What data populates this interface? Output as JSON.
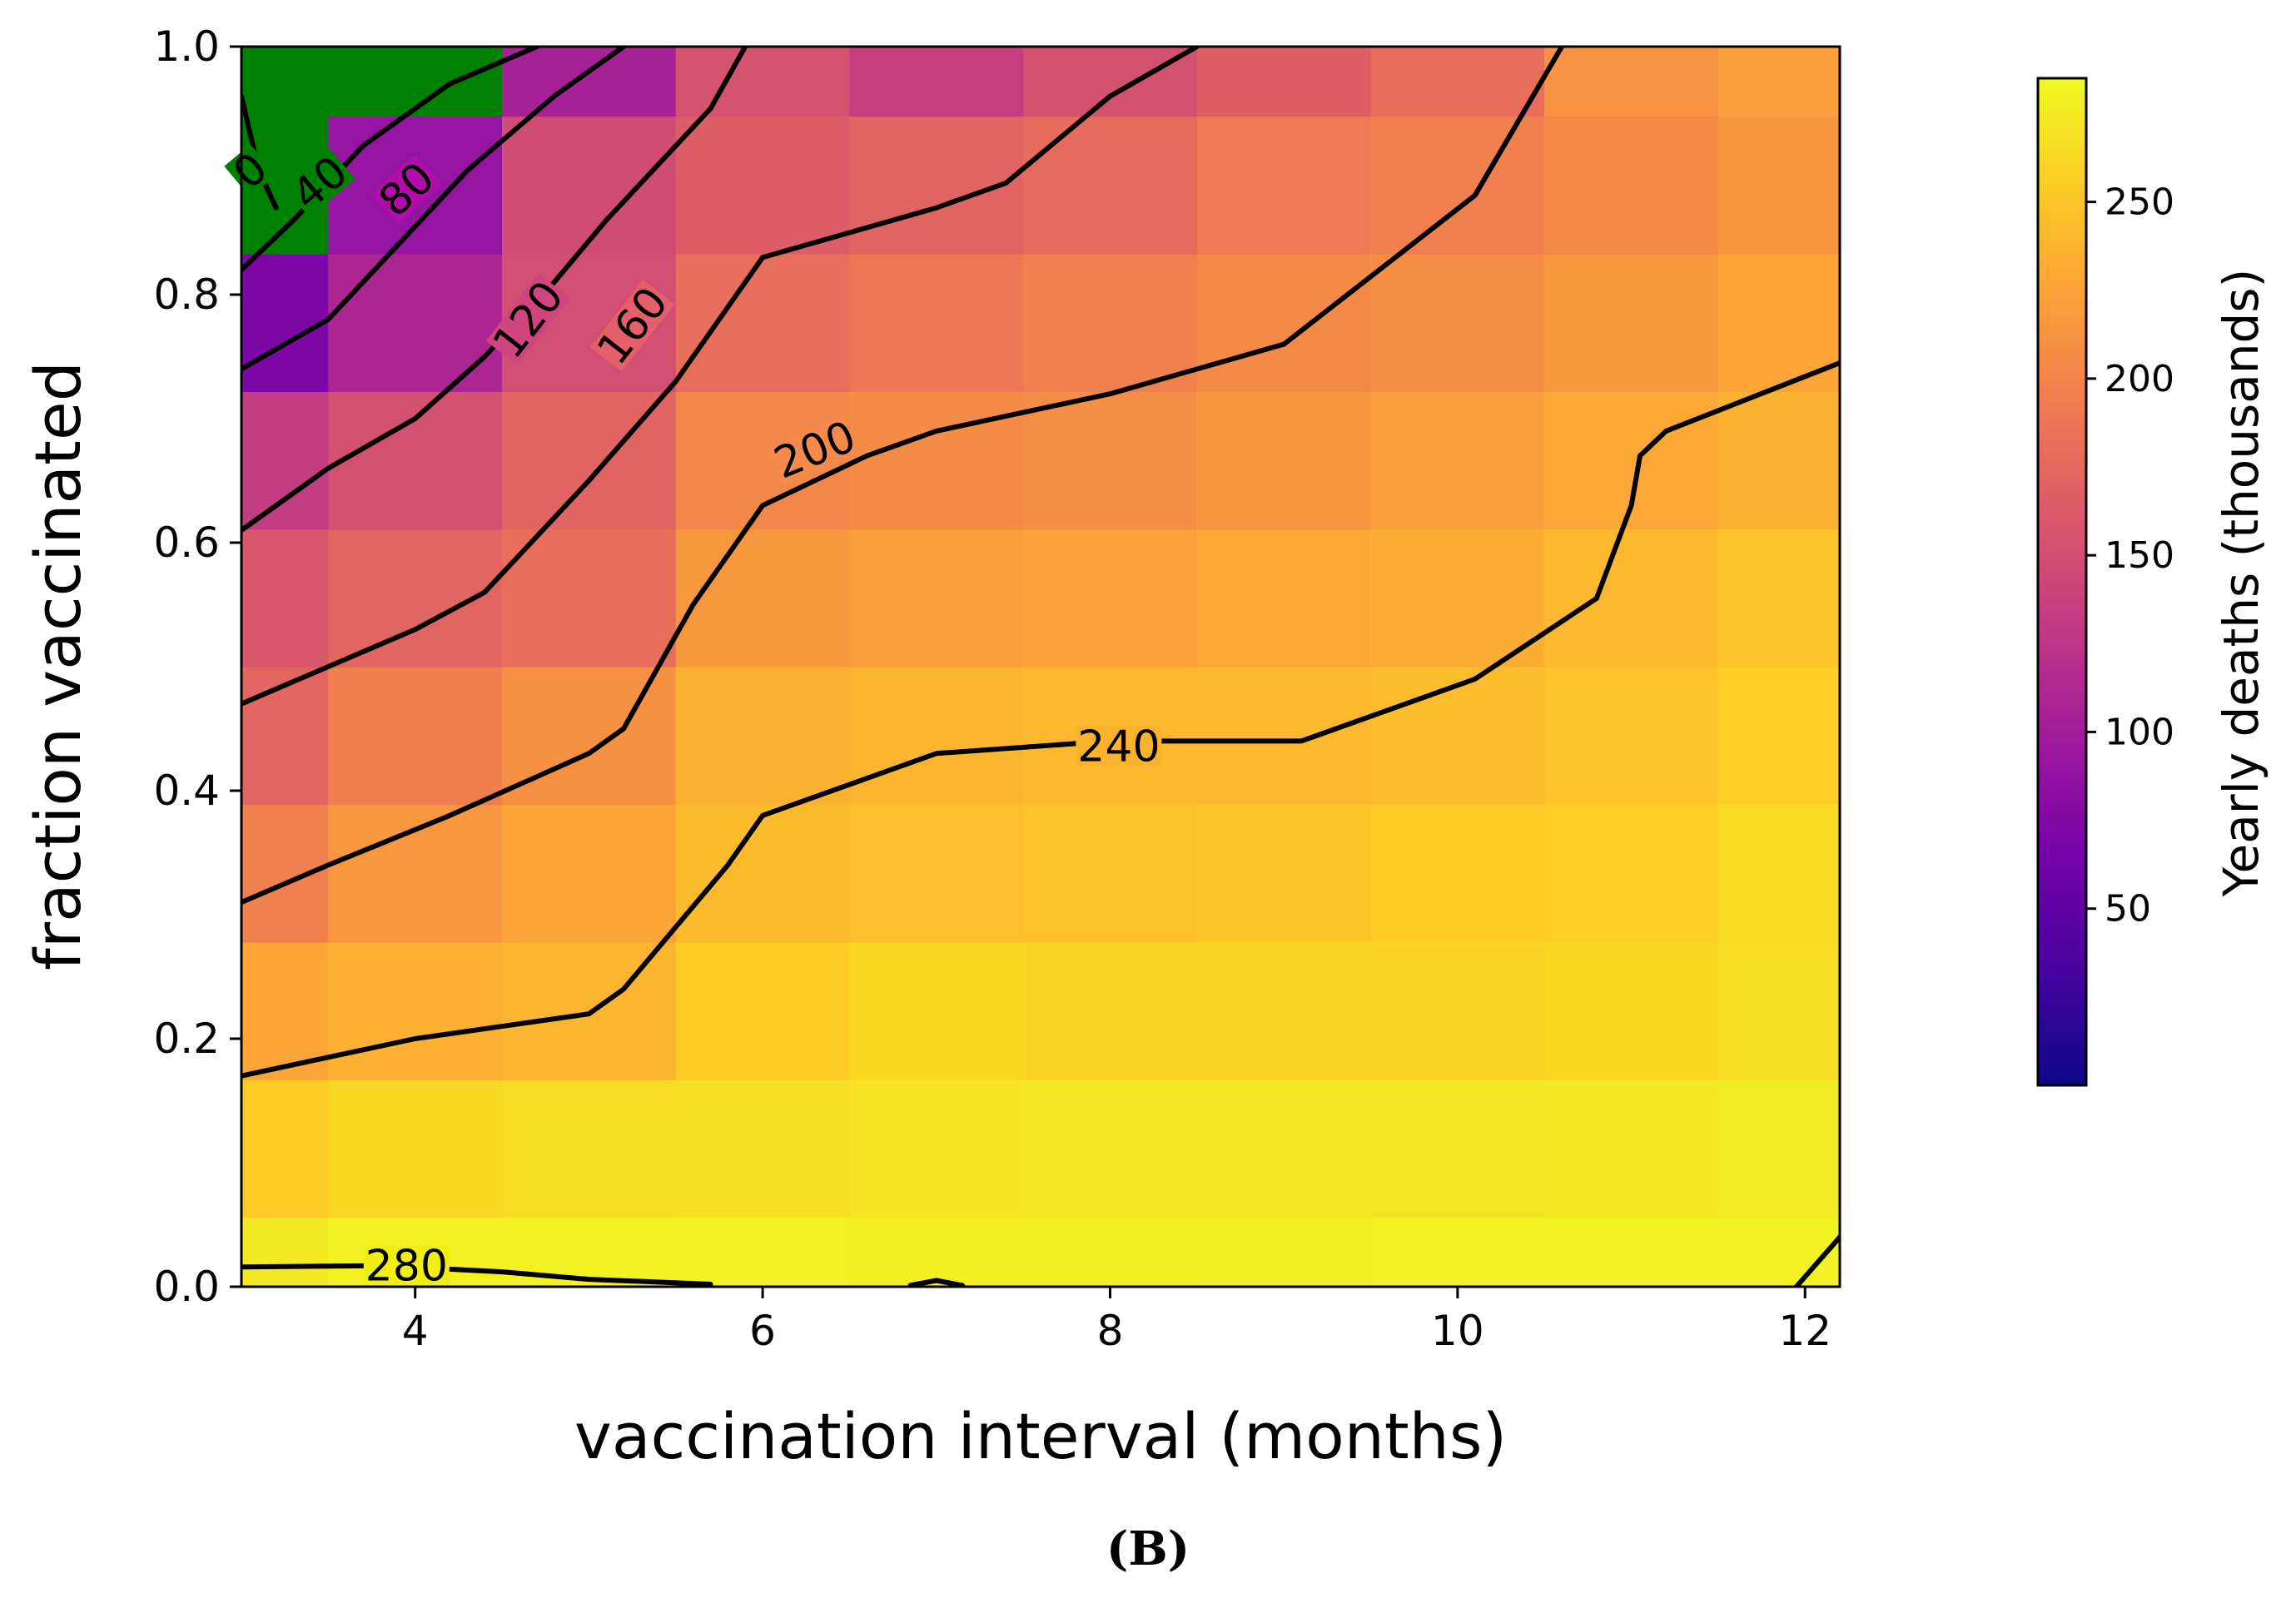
{
  "chart_data": {
    "type": "heatmap",
    "xlabel": "vaccination interval (months)",
    "ylabel": "fraction vaccinated",
    "xlim": [
      3.0,
      12.2
    ],
    "ylim": [
      0.0,
      1.0
    ],
    "xticks": [
      4,
      6,
      8,
      10,
      12
    ],
    "yticks": [
      0.0,
      0.2,
      0.4,
      0.6,
      0.8,
      1.0
    ],
    "xtick_labels": [
      "4",
      "6",
      "8",
      "10",
      "12"
    ],
    "ytick_labels": [
      "0.0",
      "0.2",
      "0.4",
      "0.6",
      "0.8",
      "1.0"
    ],
    "grid": false,
    "colormap": "plasma",
    "colorbar": {
      "label": "Yearly deaths (thousands)",
      "range": [
        0,
        285
      ],
      "ticks": [
        50,
        100,
        150,
        200,
        250
      ],
      "tick_labels": [
        "50",
        "100",
        "150",
        "200",
        "250"
      ],
      "stops": [
        "#0d0887",
        "#46039f",
        "#7201a8",
        "#9c179e",
        "#bd3786",
        "#d8576b",
        "#ed7953",
        "#fb9f3a",
        "#fdca26",
        "#f0f921"
      ]
    },
    "low_value_color": "#008000",
    "x_edges": [
      3.0,
      3.5,
      4.5,
      5.5,
      6.5,
      7.5,
      8.5,
      9.5,
      10.5,
      11.5,
      12.2
    ],
    "y_edges": [
      0.0,
      0.056,
      0.167,
      0.278,
      0.389,
      0.5,
      0.611,
      0.722,
      0.833,
      0.944,
      1.0
    ],
    "grid_values": [
      [
        275,
        280,
        280,
        280,
        278,
        278,
        279,
        280,
        280,
        281
      ],
      [
        253,
        262,
        266,
        268,
        270,
        272,
        272,
        272,
        274,
        276
      ],
      [
        226,
        235,
        238,
        254,
        262,
        261,
        260,
        261,
        262,
        266
      ],
      [
        196,
        215,
        226,
        242,
        245,
        247,
        250,
        253,
        256,
        264
      ],
      [
        172,
        195,
        210,
        236,
        238,
        240,
        240,
        244,
        248,
        256
      ],
      [
        158,
        172,
        180,
        216,
        222,
        224,
        228,
        232,
        240,
        248
      ],
      [
        132,
        152,
        170,
        202,
        206,
        208,
        214,
        220,
        228,
        236
      ],
      [
        72,
        110,
        150,
        180,
        188,
        196,
        204,
        208,
        216,
        226
      ],
      [
        10,
        90,
        148,
        164,
        170,
        178,
        192,
        196,
        204,
        214
      ],
      [
        2,
        5,
        105,
        154,
        135,
        152,
        166,
        180,
        212,
        220
      ]
    ],
    "contours": [
      {
        "level": 0,
        "label": "0",
        "points": [
          [
            3.0,
            0.96
          ],
          [
            3.1,
            0.9
          ],
          [
            3.2,
            0.87
          ]
        ]
      },
      {
        "level": 40,
        "label": "40",
        "points": [
          [
            3.0,
            0.82
          ],
          [
            3.3,
            0.86
          ],
          [
            3.7,
            0.92
          ],
          [
            4.2,
            0.97
          ],
          [
            4.7,
            1.0
          ]
        ]
      },
      {
        "level": 80,
        "label": "80",
        "points": [
          [
            3.0,
            0.74
          ],
          [
            3.5,
            0.78
          ],
          [
            3.9,
            0.84
          ],
          [
            4.3,
            0.9
          ],
          [
            4.8,
            0.96
          ],
          [
            5.2,
            1.0
          ]
        ]
      },
      {
        "level": 120,
        "label": "120",
        "points": [
          [
            3.0,
            0.61
          ],
          [
            3.5,
            0.66
          ],
          [
            4.0,
            0.7
          ],
          [
            4.4,
            0.75
          ],
          [
            4.8,
            0.81
          ],
          [
            5.1,
            0.86
          ],
          [
            5.5,
            0.92
          ],
          [
            5.7,
            0.95
          ],
          [
            5.9,
            1.0
          ]
        ]
      },
      {
        "level": 160,
        "label": "160",
        "points": [
          [
            3.0,
            0.47
          ],
          [
            3.5,
            0.5
          ],
          [
            4.0,
            0.53
          ],
          [
            4.4,
            0.56
          ],
          [
            5.0,
            0.65
          ],
          [
            5.5,
            0.73
          ],
          [
            6.0,
            0.83
          ],
          [
            7.0,
            0.87
          ],
          [
            7.4,
            0.89
          ],
          [
            8.0,
            0.96
          ],
          [
            8.5,
            1.0
          ]
        ]
      },
      {
        "level": 200,
        "label": "200",
        "points": [
          [
            3.0,
            0.31
          ],
          [
            3.5,
            0.34
          ],
          [
            4.2,
            0.38
          ],
          [
            5.0,
            0.43
          ],
          [
            5.2,
            0.45
          ],
          [
            5.6,
            0.55
          ],
          [
            6.0,
            0.63
          ],
          [
            6.6,
            0.67
          ],
          [
            7.0,
            0.69
          ],
          [
            8.0,
            0.72
          ],
          [
            9.0,
            0.76
          ],
          [
            10.1,
            0.88
          ],
          [
            10.6,
            1.0
          ]
        ]
      },
      {
        "level": 240,
        "label": "240",
        "points": [
          [
            3.0,
            0.17
          ],
          [
            3.5,
            0.185
          ],
          [
            4.0,
            0.2
          ],
          [
            5.0,
            0.22
          ],
          [
            5.2,
            0.24
          ],
          [
            5.8,
            0.34
          ],
          [
            6.0,
            0.38
          ],
          [
            7.0,
            0.43
          ],
          [
            8.0,
            0.44
          ],
          [
            9.1,
            0.44
          ],
          [
            9.2,
            0.445
          ],
          [
            10.1,
            0.49
          ],
          [
            10.8,
            0.555
          ],
          [
            11.0,
            0.63
          ],
          [
            11.05,
            0.67
          ],
          [
            11.2,
            0.69
          ],
          [
            12.2,
            0.745
          ]
        ]
      },
      {
        "level": 280,
        "label": "280",
        "points": [
          [
            3.0,
            0.016
          ],
          [
            3.8,
            0.017
          ],
          [
            4.5,
            0.012
          ],
          [
            5.0,
            0.006
          ],
          [
            5.7,
            0.002
          ]
        ]
      },
      {
        "level": 280,
        "label": "",
        "points": [
          [
            6.85,
            0.001
          ],
          [
            7.0,
            0.005
          ],
          [
            7.15,
            0.001
          ]
        ]
      },
      {
        "level": 280,
        "label": "",
        "points": [
          [
            11.95,
            0.0
          ],
          [
            12.2,
            0.04
          ]
        ]
      }
    ],
    "contour_labels": [
      {
        "text": "0",
        "x": 3.05,
        "y": 0.9,
        "rotation": -40
      },
      {
        "text": "40",
        "x": 3.45,
        "y": 0.89,
        "rotation": -40
      },
      {
        "text": "80",
        "x": 3.95,
        "y": 0.885,
        "rotation": -42
      },
      {
        "text": "120",
        "x": 4.65,
        "y": 0.78,
        "rotation": -52
      },
      {
        "text": "160",
        "x": 5.25,
        "y": 0.775,
        "rotation": -52
      },
      {
        "text": "200",
        "x": 6.3,
        "y": 0.675,
        "rotation": -22
      },
      {
        "text": "240",
        "x": 8.05,
        "y": 0.436,
        "rotation": 0
      },
      {
        "text": "280",
        "x": 3.95,
        "y": 0.017,
        "rotation": 0
      }
    ]
  },
  "caption": "(B)"
}
